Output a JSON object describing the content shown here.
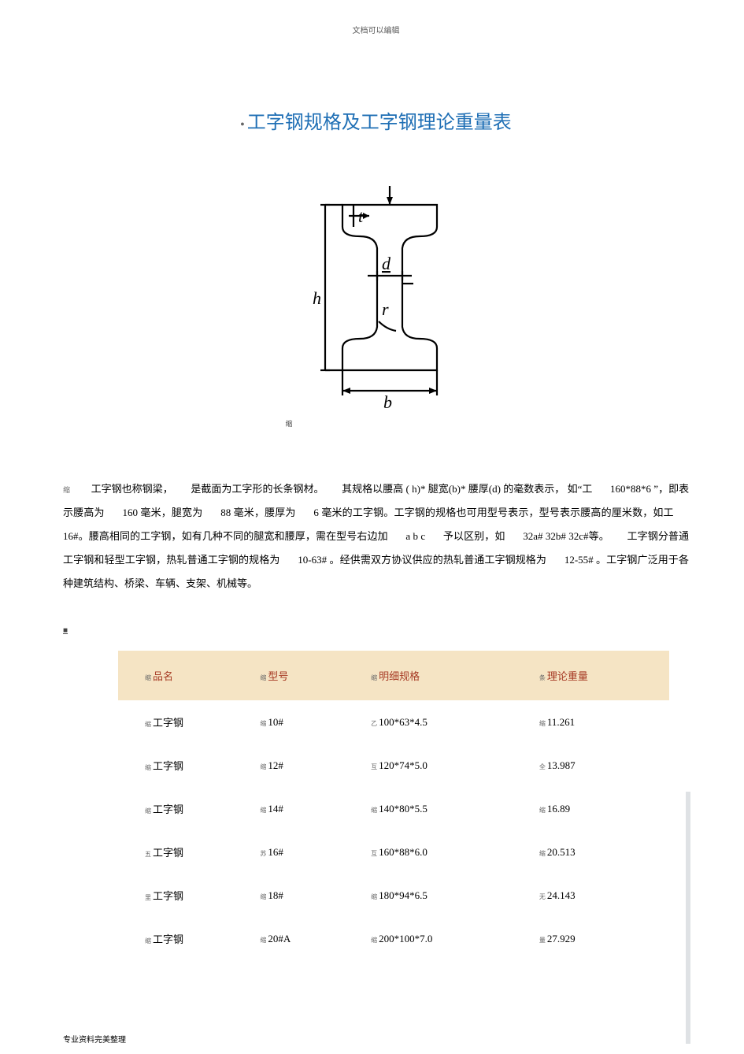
{
  "header_note": "文档可以编辑",
  "title_prefix": "●",
  "title": "工字钢规格及工字钢理论重量表",
  "diagram": {
    "labels": {
      "h": "h",
      "d": "d",
      "r": "r",
      "t": "t",
      "b": "b"
    },
    "stroke": "#000000",
    "fill": "#ffffff",
    "font_family": "Times New Roman, serif",
    "footnote_mark": "缩"
  },
  "description": {
    "lead_mark": "缩",
    "text_parts": [
      "工字钢也称钢梁，",
      "是截面为工字形的长条钢材。",
      "其规格以腰高",
      "( h)*",
      "腿宽(b)*",
      "腰厚(d)",
      "的毫数表示，",
      "如“工",
      "160*88*6",
      "”，即表示腰高为",
      "160",
      "毫米，腿宽为",
      "88",
      "毫米，腰厚为",
      "6",
      "毫米的工字钢。工字钢的规格也可用型号表示，型号表示腰高的厘米数，如工",
      "16#。腰高相同的工字钢，如有几种不同的腿宽和腰厚，需在型号右边加",
      "a b c",
      "予以区别，如",
      "32a#",
      "32b#",
      "32c#等。",
      "工字钢分普通工字钢和轻型工字钢，热轧普通工字钢的规格为",
      "10-63#",
      "。经供需双方协议供应的热轧普通工字钢规格为",
      "12-55#",
      "。工字钢广泛用于各种建筑结构、桥梁、车辆、支架、机械等。"
    ]
  },
  "section_mark": "■",
  "table": {
    "header_bg": "#f5e4c4",
    "header_color": "#a63a24",
    "columns": [
      "品名",
      "型号",
      "明细规格",
      "理论重量"
    ],
    "col_marks": [
      "缩",
      "缩",
      "缩",
      "条"
    ],
    "rows": [
      {
        "mark": [
          "缩",
          "缩",
          "乙",
          "缩"
        ],
        "cells": [
          "工字钢",
          "10#",
          "100*63*4.5",
          "11.261"
        ]
      },
      {
        "mark": [
          "缩",
          "缩",
          "互",
          "全"
        ],
        "cells": [
          "工字钢",
          "12#",
          "120*74*5.0",
          "13.987"
        ]
      },
      {
        "mark": [
          "缩",
          "缩",
          "缩",
          "缩"
        ],
        "cells": [
          "工字钢",
          "14#",
          "140*80*5.5",
          "16.89"
        ]
      },
      {
        "mark": [
          "五",
          "苏",
          "互",
          "缩"
        ],
        "cells": [
          "工字钢",
          "16#",
          "160*88*6.0",
          "20.513"
        ]
      },
      {
        "mark": [
          "里",
          "缩",
          "缩",
          "无"
        ],
        "cells": [
          "工字钢",
          "18#",
          "180*94*6.5",
          "24.143"
        ]
      },
      {
        "mark": [
          "缩",
          "缩",
          "缩",
          "量"
        ],
        "cells": [
          "工字钢",
          "20#A",
          "200*100*7.0",
          "27.929"
        ]
      }
    ]
  },
  "footer_note": "专业资料完美整理"
}
